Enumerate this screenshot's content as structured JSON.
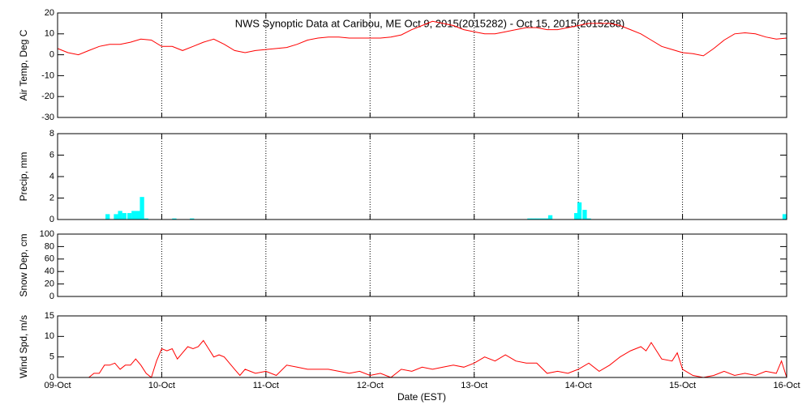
{
  "chart_data": {
    "type": "line",
    "title": "NWS Synoptic Data at Caribou, ME   Oct  9, 2015(2015282) - Oct 15, 2015(2015288)",
    "xlabel": "Date (EST)",
    "xlim": [
      0,
      7
    ],
    "xticks": [
      {
        "value": 0,
        "label": "09-Oct"
      },
      {
        "value": 1,
        "label": "10-Oct"
      },
      {
        "value": 2,
        "label": "11-Oct"
      },
      {
        "value": 3,
        "label": "12-Oct"
      },
      {
        "value": 4,
        "label": "13-Oct"
      },
      {
        "value": 5,
        "label": "14-Oct"
      },
      {
        "value": 6,
        "label": "15-Oct"
      },
      {
        "value": 7,
        "label": "16-Oct"
      }
    ],
    "grid": true,
    "panels": [
      {
        "type": "line",
        "ylabel": "Air Temp, Deg C",
        "ylim": [
          -30,
          20
        ],
        "yticks": [
          -30,
          -20,
          -10,
          0,
          10,
          20
        ],
        "color": "#ff0000",
        "x": [
          0,
          0.1,
          0.2,
          0.3,
          0.4,
          0.5,
          0.6,
          0.7,
          0.8,
          0.9,
          1.0,
          1.1,
          1.2,
          1.3,
          1.4,
          1.5,
          1.6,
          1.7,
          1.8,
          1.9,
          2.0,
          2.1,
          2.2,
          2.3,
          2.4,
          2.5,
          2.6,
          2.7,
          2.8,
          2.9,
          3.0,
          3.1,
          3.2,
          3.3,
          3.4,
          3.5,
          3.6,
          3.7,
          3.8,
          3.9,
          4.0,
          4.1,
          4.2,
          4.3,
          4.4,
          4.5,
          4.6,
          4.7,
          4.8,
          4.9,
          5.0,
          5.1,
          5.2,
          5.3,
          5.4,
          5.5,
          5.6,
          5.7,
          5.8,
          5.9,
          6.0,
          6.1,
          6.2,
          6.3,
          6.4,
          6.5,
          6.6,
          6.7,
          6.8,
          6.9,
          7.0
        ],
        "values": [
          3,
          1,
          0,
          2,
          4,
          5,
          5,
          6,
          7.5,
          7,
          4,
          4,
          2,
          4,
          6,
          7.5,
          5,
          2,
          1,
          2,
          2.5,
          3,
          3.5,
          5,
          7,
          8,
          8.5,
          8.5,
          8,
          8,
          8,
          8,
          8.5,
          9.5,
          12,
          14,
          16,
          15,
          14,
          12,
          11,
          10,
          10,
          11,
          12,
          13,
          13,
          12,
          12,
          13,
          14,
          15,
          15,
          15,
          14,
          12,
          10,
          7,
          4,
          2.5,
          1,
          0.5,
          -0.5,
          3,
          7,
          10,
          10.5,
          10,
          8.5,
          7.5,
          8
        ]
      },
      {
        "type": "bar",
        "ylabel": "Precip, mm",
        "ylim": [
          0,
          8
        ],
        "yticks": [
          0,
          2,
          4,
          6,
          8
        ],
        "color": "#00ffff",
        "x": [
          0.46,
          0.54,
          0.58,
          0.62,
          0.67,
          0.71,
          0.75,
          0.79,
          0.83,
          1.1,
          1.27,
          4.51,
          4.55,
          4.59,
          4.63,
          4.67,
          4.71,
          4.96,
          4.99,
          5.04,
          5.08,
          6.96
        ],
        "values": [
          0.5,
          0.5,
          0.8,
          0.6,
          0.6,
          0.8,
          0.8,
          2.1,
          0.1,
          0.1,
          0.1,
          0.1,
          0.1,
          0.1,
          0.1,
          0.1,
          0.4,
          0.6,
          1.6,
          0.9,
          0.1,
          0.5
        ]
      },
      {
        "type": "line",
        "ylabel": "Snow Dep, cm",
        "ylim": [
          0,
          100
        ],
        "yticks": [
          0,
          20,
          40,
          60,
          80,
          100
        ],
        "color": "#ff0000",
        "x": [],
        "values": []
      },
      {
        "type": "line",
        "ylabel": "Wind Spd, m/s",
        "ylim": [
          0,
          15
        ],
        "yticks": [
          0,
          5,
          10,
          15
        ],
        "color": "#ff0000",
        "x": [
          0.3,
          0.35,
          0.4,
          0.45,
          0.5,
          0.55,
          0.6,
          0.65,
          0.7,
          0.75,
          0.8,
          0.85,
          0.9,
          0.95,
          1.0,
          1.05,
          1.1,
          1.15,
          1.2,
          1.25,
          1.3,
          1.35,
          1.4,
          1.45,
          1.5,
          1.55,
          1.6,
          1.65,
          1.7,
          1.75,
          1.8,
          1.9,
          2.0,
          2.1,
          2.2,
          2.3,
          2.4,
          2.5,
          2.6,
          2.7,
          2.8,
          2.9,
          3.0,
          3.1,
          3.2,
          3.3,
          3.4,
          3.5,
          3.6,
          3.7,
          3.8,
          3.9,
          4.0,
          4.1,
          4.2,
          4.3,
          4.4,
          4.5,
          4.6,
          4.7,
          4.8,
          4.9,
          5.0,
          5.1,
          5.2,
          5.3,
          5.4,
          5.5,
          5.6,
          5.65,
          5.7,
          5.8,
          5.9,
          5.95,
          6.0,
          6.1,
          6.2,
          6.3,
          6.4,
          6.5,
          6.6,
          6.7,
          6.8,
          6.9,
          6.95,
          7.0
        ],
        "values": [
          0,
          1,
          1,
          3,
          3,
          3.5,
          2,
          3,
          3,
          4.5,
          3,
          1,
          0,
          4,
          7,
          6.5,
          7,
          4.5,
          6,
          7.5,
          7,
          7.5,
          9,
          7,
          5,
          5.5,
          5,
          3.5,
          2,
          0.5,
          2,
          1,
          1.5,
          0.5,
          3,
          2.5,
          2,
          2,
          2,
          1.5,
          1,
          1.5,
          0.5,
          1,
          0,
          2,
          1.5,
          2.5,
          2,
          2.5,
          3,
          2.5,
          3.5,
          5,
          4,
          5.5,
          4,
          3.5,
          3.5,
          1,
          1.5,
          1,
          2,
          3.5,
          1.5,
          3,
          5,
          6.5,
          7.5,
          6.5,
          8.5,
          4.5,
          4,
          6,
          2,
          0.5,
          0,
          0.5,
          1.5,
          0.5,
          1,
          0.5,
          1.5,
          1,
          4,
          0
        ]
      }
    ]
  }
}
